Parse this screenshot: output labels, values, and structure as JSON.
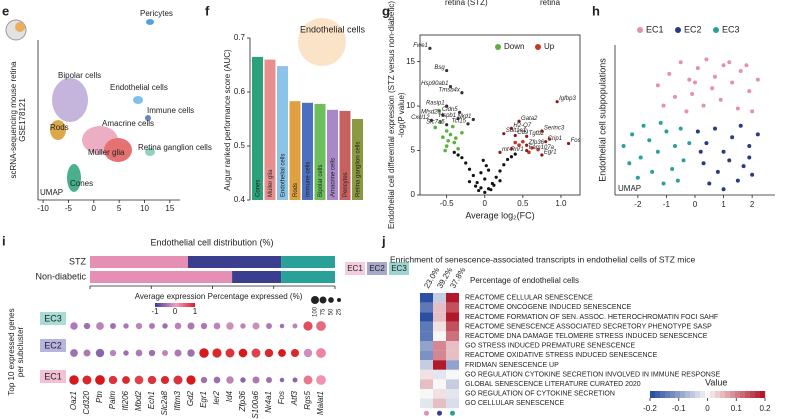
{
  "chart_data": [
    {
      "type": "umap",
      "label": "e",
      "ylabel": [
        "scRNA-sequencing mouse retina",
        "GSE178121"
      ],
      "corner_label": "UMAP",
      "clusters": [
        {
          "name": "Bipolar cells",
          "color": "#8e6bb8"
        },
        {
          "name": "Pericytes",
          "color": "#3a8fd0"
        },
        {
          "name": "Endothelial cells",
          "color": "#6cb6e8"
        },
        {
          "name": "Immune cells",
          "color": "#4c6fc0"
        },
        {
          "name": "Amacrine cells",
          "color": "#e8a0b8"
        },
        {
          "name": "Müller glia",
          "color": "#e05a5a"
        },
        {
          "name": "Rods",
          "color": "#d89a2a"
        },
        {
          "name": "Retina ganglion cells",
          "color": "#7fc8b8"
        },
        {
          "name": "Cones",
          "color": "#2aa37a"
        }
      ],
      "xlim": [
        -11,
        17
      ],
      "xticks": [
        -10,
        -5,
        0,
        5,
        10,
        15
      ]
    },
    {
      "type": "bar",
      "label": "f",
      "ylabel": "Augur ranked performance score (AUC)",
      "annotation": "Endothelial cells",
      "categories": [
        "Cones",
        "Müller glia",
        "Endothelial cells",
        "Rods",
        "Immune cells",
        "Bipolar cells",
        "Amacrine cells",
        "Pericytes",
        "Retina ganglion cells"
      ],
      "values": [
        0.665,
        0.66,
        0.648,
        0.583,
        0.58,
        0.578,
        0.567,
        0.565,
        0.55
      ],
      "colors": [
        "#2aa37a",
        "#e89090",
        "#8ac4e8",
        "#e0a040",
        "#4c6fc0",
        "#6cbf5a",
        "#a888c8",
        "#c86060",
        "#8a9a40"
      ],
      "ylim": [
        0.4,
        0.7
      ],
      "yticks": [
        0.4,
        0.5,
        0.6,
        0.7
      ]
    },
    {
      "type": "volcano",
      "label": "g",
      "top_texts": [
        "retina (STZ)",
        "retina"
      ],
      "ylabel": "Endothelial cell differential expression (STZ versus non-diabetic)",
      "ylabel2": "-log(P value)",
      "xlabel": "Average log₂(FC)",
      "xlim": [
        -0.85,
        1.25
      ],
      "xticks": [
        -0.5,
        0,
        0.5,
        {
          "value": 1.0,
          "label": "1.0"
        }
      ],
      "ylim": [
        0,
        18
      ],
      "yticks": [
        0,
        5,
        10,
        15
      ],
      "background": {
        "color": "#111111",
        "x": [
          -0.3,
          -0.25,
          -0.2,
          -0.15,
          -0.1,
          -0.05,
          0,
          0.05,
          0.1,
          0.15,
          0.2,
          0.25,
          0.3,
          -0.12,
          0.12,
          -0.08,
          0.08,
          0,
          -0.2,
          0.2,
          -0.05,
          0.05,
          -0.35,
          0.35,
          0.02,
          -0.02,
          0.4,
          -0.4
        ],
        "y": [
          4.2,
          3.6,
          2.9,
          2.2,
          1.4,
          0.8,
          0.3,
          0.7,
          1.3,
          2.0,
          2.7,
          3.4,
          4.0,
          1.0,
          1.1,
          0.5,
          0.6,
          1.8,
          1.5,
          1.6,
          2.5,
          2.8,
          4.5,
          4.3,
          3.3,
          3.9,
          4.6,
          4.8
        ]
      },
      "series": [
        {
          "name": "Down",
          "color": "#5cb040",
          "x": [
            -0.6,
            -0.5,
            -0.55,
            -0.45,
            -0.4,
            -0.65,
            -0.5,
            -0.35,
            -0.42,
            -0.58,
            -0.48,
            -0.38,
            -0.52,
            -0.3
          ],
          "y": [
            9.5,
            7.2,
            6.5,
            6.8,
            5.9,
            7.6,
            5.5,
            5.2,
            7.7,
            8.2,
            6.1,
            6.4,
            5.0,
            7.0
          ]
        },
        {
          "name": "Up",
          "color": "#c0392b",
          "x": [
            0.5,
            0.62,
            0.45,
            0.7,
            0.58,
            0.4,
            0.85,
            0.35
          ],
          "y": [
            6.0,
            5.3,
            5.6,
            5.1,
            4.8,
            5.9,
            6.3,
            5.2
          ]
        }
      ],
      "genes": [
        {
          "label": "Fwe1",
          "x": -0.72,
          "y": 16.5
        },
        {
          "label": "Bsg",
          "x": -0.5,
          "y": 14
        },
        {
          "label": "Hsp90ab1",
          "x": -0.45,
          "y": 12.2
        },
        {
          "label": "Tmsb4x",
          "x": -0.3,
          "y": 11.5
        },
        {
          "label": "Rasip1",
          "x": -0.5,
          "y": 10
        },
        {
          "label": "Cldn5",
          "x": -0.33,
          "y": 9.3
        },
        {
          "label": "Mfsd2a",
          "x": -0.55,
          "y": 9
        },
        {
          "label": "Hspb1",
          "x": -0.35,
          "y": 8.6
        },
        {
          "label": "Nkd1",
          "x": -0.15,
          "y": 8.5
        },
        {
          "label": "Cxcl12",
          "x": -0.7,
          "y": 8.4
        },
        {
          "label": "Slc7a5",
          "x": -0.5,
          "y": 7.9
        },
        {
          "label": "Tcf15",
          "x": -0.22,
          "y": 8
        },
        {
          "label": "Igfbp3",
          "x": 0.95,
          "y": 10.5
        },
        {
          "label": "Gata2",
          "x": 0.45,
          "y": 8.3
        },
        {
          "label": "H2-Q7",
          "x": 0.35,
          "y": 7.5
        },
        {
          "label": "Sult1a1",
          "x": 0.25,
          "y": 6.9
        },
        {
          "label": "Cd9",
          "x": 0.4,
          "y": 6.7
        },
        {
          "label": "Serinc3",
          "x": 0.75,
          "y": 7.2
        },
        {
          "label": "Tgfb2",
          "x": 0.55,
          "y": 6.6
        },
        {
          "label": "Crip1",
          "x": 0.8,
          "y": 6
        },
        {
          "label": "Zfp36",
          "x": 0.55,
          "y": 5.6
        },
        {
          "label": "Fam107a",
          "x": 0.55,
          "y": 5
        },
        {
          "label": "Egr1",
          "x": 0.75,
          "y": 4.5
        },
        {
          "label": "Fos",
          "x": 1.1,
          "y": 5.8
        },
        {
          "label": "mt-Rnr1",
          "x": 0.2,
          "y": 4.8
        }
      ]
    },
    {
      "type": "scatter",
      "label": "h",
      "ylabel": "Endothelial cell subpopulations",
      "corner_label": "UMAP",
      "xlim": [
        -2.8,
        2.8
      ],
      "xticks": [
        -2,
        -1,
        0,
        1,
        2
      ],
      "ylim": [
        -2.6,
        2.6
      ],
      "series": [
        {
          "name": "EC1",
          "color": "#e58fb4",
          "x": [
            -1.3,
            -0.9,
            -0.5,
            -0.2,
            0.1,
            0.4,
            0.7,
            1.0,
            1.3,
            1.6,
            1.9,
            2.2,
            -0.7,
            -0.1,
            0.3,
            0.9,
            1.5,
            2.0,
            -1.1,
            0.6,
            1.2,
            -0.3,
            0.0,
            1.8
          ],
          "y": [
            1.2,
            1.6,
            2.0,
            1.4,
            1.8,
            2.1,
            1.5,
            1.9,
            1.3,
            1.7,
            1.0,
            1.4,
            0.8,
            0.9,
            0.5,
            0.7,
            0.4,
            0.3,
            0.5,
            1.1,
            2.0,
            0.3,
            1.3,
            1.9
          ]
        },
        {
          "name": "EC2",
          "color": "#2c3a80",
          "x": [
            0.1,
            0.4,
            0.7,
            1.0,
            1.3,
            1.6,
            1.9,
            2.2,
            0.3,
            0.8,
            1.2,
            1.7,
            2.0,
            0.5,
            1.0,
            1.5,
            0.2,
            1.9
          ],
          "y": [
            -0.4,
            -0.8,
            -0.3,
            -1.1,
            -0.6,
            -0.2,
            -0.9,
            -0.5,
            -1.5,
            -1.8,
            -1.4,
            -1.6,
            -1.9,
            -2.2,
            -2.4,
            -2.1,
            -1.1,
            -1.3
          ]
        },
        {
          "name": "EC3",
          "color": "#2aa198",
          "x": [
            -2.5,
            -2.2,
            -1.9,
            -1.6,
            -1.3,
            -1.0,
            -0.7,
            -0.4,
            -2.0,
            -1.5,
            -1.1,
            -0.8,
            -0.5,
            -1.8,
            -1.2,
            -0.6,
            -2.3,
            -0.2
          ],
          "y": [
            -0.9,
            -0.5,
            -1.3,
            -0.7,
            -1.1,
            -0.4,
            -0.9,
            -1.4,
            -2.0,
            -1.8,
            -2.2,
            -1.7,
            -0.3,
            -0.2,
            -0.1,
            -2.1,
            -1.5,
            -0.8
          ]
        }
      ]
    },
    {
      "type": "stacked_hbar",
      "label": "i",
      "title": "Endothelial cell distribution (%)",
      "categories": [
        "STZ",
        "Non-diabetic"
      ],
      "xlim": [
        0,
        100
      ],
      "xticks": [
        0,
        25,
        50,
        75,
        100
      ],
      "series": [
        {
          "name": "EC1",
          "color": "#e58fb4",
          "values": [
            40,
            58
          ]
        },
        {
          "name": "EC2",
          "color": "#3b3d8f",
          "values": [
            38,
            20
          ]
        },
        {
          "name": "EC3",
          "color": "#2aa198",
          "values": [
            22,
            22
          ]
        }
      ]
    },
    {
      "type": "dotplot",
      "ylabel": [
        "Top 10 expressed genes",
        "per subcluster"
      ],
      "color_title": "Average expression",
      "color_ticks": [
        -1,
        0,
        1
      ],
      "size_title": "Percentage expressed (%)",
      "size_ticks": [
        100,
        75,
        50,
        25
      ],
      "genes": [
        "Oaz1",
        "Cd320",
        "Ptn",
        "Palm",
        "Ifi206",
        "Mbd2",
        "Ech1",
        "Slc2a8",
        "Ifitm3",
        "Gd2",
        "Egr1",
        "Ier2",
        "Id4",
        "Zfp36",
        "S100a6",
        "Nr4a1",
        "Fos",
        "Atf3",
        "Rgs5",
        "Malat1"
      ],
      "gene_group": [
        "EC1",
        "EC1",
        "EC1",
        "EC1",
        "EC1",
        "EC1",
        "EC1",
        "EC1",
        "EC1",
        "EC1",
        "EC2",
        "EC2",
        "EC2",
        "EC2",
        "EC2",
        "EC2",
        "EC2",
        "EC2",
        "EC3",
        "EC3"
      ],
      "rows": [
        {
          "name": "EC3",
          "color": "#a8dcd4",
          "expr": [
            -0.4,
            -0.5,
            -0.3,
            -0.5,
            -0.4,
            -0.3,
            -0.4,
            -0.5,
            -0.3,
            -0.4,
            -0.4,
            -0.3,
            -0.2,
            -0.3,
            -0.2,
            -0.4,
            -0.5,
            -0.3,
            0.6,
            0.4
          ],
          "pct": [
            55,
            40,
            60,
            35,
            30,
            40,
            35,
            30,
            45,
            50,
            40,
            45,
            55,
            30,
            50,
            35,
            20,
            25,
            85,
            95
          ]
        },
        {
          "name": "EC2",
          "color": "#b8b4e0",
          "expr": [
            -0.5,
            -0.4,
            -0.6,
            -0.3,
            -0.5,
            -0.4,
            -0.5,
            -0.3,
            -0.4,
            -0.5,
            1,
            0.9,
            0.8,
            1,
            0.7,
            0.9,
            1,
            0.9,
            -0.2,
            0.2
          ],
          "pct": [
            60,
            50,
            70,
            40,
            30,
            45,
            40,
            35,
            50,
            55,
            90,
            85,
            80,
            75,
            80,
            70,
            60,
            65,
            70,
            95
          ]
        },
        {
          "name": "EC1",
          "color": "#f4c0d6",
          "expr": [
            1,
            0.9,
            1,
            0.8,
            0.9,
            0.7,
            0.8,
            0.9,
            0.8,
            1,
            -0.5,
            -0.5,
            -0.3,
            -0.6,
            -0.4,
            -0.5,
            -0.6,
            -0.6,
            0.3,
            0.1
          ],
          "pct": [
            90,
            80,
            95,
            70,
            60,
            75,
            70,
            65,
            80,
            85,
            40,
            45,
            55,
            30,
            50,
            35,
            20,
            25,
            80,
            95
          ]
        }
      ]
    },
    {
      "type": "heatmap",
      "label": "j",
      "title": "Enrichment of senescence-associated transcripts in endothelial cells of STZ mice",
      "column_title": "Percentage of endothelial cells",
      "columns": [
        "23.0%",
        "39.2%",
        "37.8%"
      ],
      "rows": [
        "REACTOME CELLULAR SENESCENCE",
        "REACTOME ONCOGENE INDUCED SENESCENCE",
        "REACTOME FORMATION OF SEN. ASSOC. HETEROCHROMATIN FOCI SAHF",
        "REACTOME SENESCENCE ASSOCIATED SECRETORY PHENOTYPE SASP",
        "REACTOME DNA DAMAGE TELOMERE STRESS INDUCED SENESCENCE",
        "GO STRESS INDUCED PREMATURE SENESCENCE",
        "REACTOME OXIDATIVE STRESS INDUCED SENESCENCE",
        "FRIDMAN SENESCENCE UP",
        "GO REGULATION CYTOKINE SECRETION INVOLVED IN IMMUNE RESPONSE",
        "GLOBAL SENESCENCE LITERATURE CURATED 2020",
        "GO REGULATION OF CYTOKINE SECRETION",
        "GO CELLULAR SENESCENCE"
      ],
      "values": [
        [
          -0.2,
          -0.05,
          0.2
        ],
        [
          -0.15,
          0.05,
          0.15
        ],
        [
          -0.2,
          0.05,
          0.2
        ],
        [
          -0.15,
          0.02,
          0.15
        ],
        [
          -0.15,
          0,
          0.12
        ],
        [
          -0.1,
          0.1,
          0.05
        ],
        [
          -0.12,
          0.1,
          0.05
        ],
        [
          -0.05,
          0.2,
          -0.1
        ],
        [
          0.02,
          -0.02,
          0
        ],
        [
          0.05,
          0,
          -0.05
        ],
        [
          0,
          0.02,
          -0.02
        ],
        [
          -0.02,
          0.05,
          -0.03
        ]
      ],
      "legend_title": "Value",
      "clim": [
        -0.2,
        0.2
      ],
      "cticks": [
        -0.2,
        -0.1,
        0,
        0.1,
        0.2
      ]
    }
  ]
}
